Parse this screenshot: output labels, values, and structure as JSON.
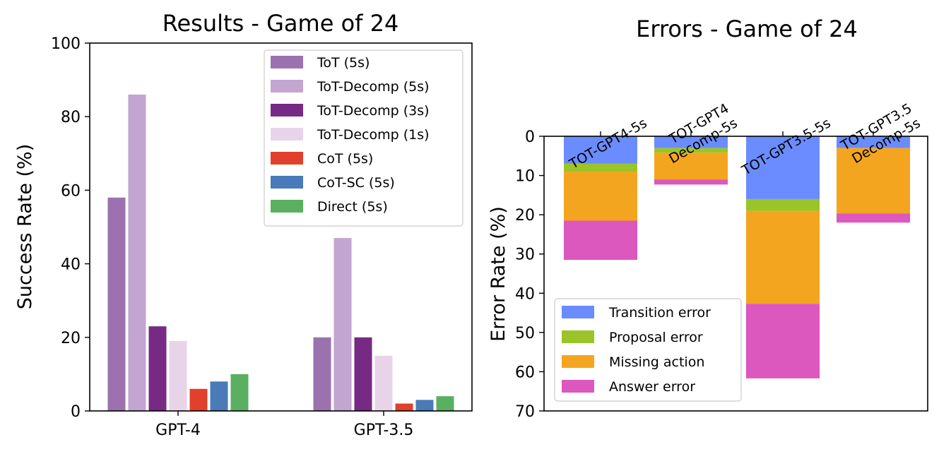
{
  "chart_data": [
    {
      "type": "bar",
      "title": "Results - Game of 24",
      "xlabel": "",
      "ylabel": "Success Rate (%)",
      "ylim": [
        0,
        100
      ],
      "yticks": [
        "0",
        "20",
        "40",
        "60",
        "80",
        "100"
      ],
      "categories": [
        "GPT-4",
        "GPT-3.5"
      ],
      "legend_position": "top-right",
      "series": [
        {
          "name": "ToT (5s)",
          "color": "#9b72ae",
          "values": [
            58,
            20
          ]
        },
        {
          "name": "ToT-Decomp (5s)",
          "color": "#c2a5d0",
          "values": [
            86,
            47
          ]
        },
        {
          "name": "ToT-Decomp (3s)",
          "color": "#772a84",
          "values": [
            23,
            20
          ]
        },
        {
          "name": "ToT-Decomp (1s)",
          "color": "#e8d4e9",
          "values": [
            19,
            15
          ]
        },
        {
          "name": "CoT (5s)",
          "color": "#e0402c",
          "values": [
            6,
            2
          ]
        },
        {
          "name": "CoT-SC (5s)",
          "color": "#4a7ab8",
          "values": [
            8,
            3
          ]
        },
        {
          "name": "Direct (5s)",
          "color": "#5aaf61",
          "values": [
            10,
            4
          ]
        }
      ]
    },
    {
      "type": "stacked-bar",
      "title": "Errors - Game of 24",
      "xlabel": "",
      "ylabel": "Error Rate (%)",
      "ylim": [
        70,
        0
      ],
      "yticks": [
        "0",
        "10",
        "20",
        "30",
        "40",
        "50",
        "60",
        "70"
      ],
      "categories": [
        {
          "line1": "TOT-GPT4-5s",
          "line2": ""
        },
        {
          "line1": "TOT-GPT4",
          "line2": "Decomp-5s"
        },
        {
          "line1": "TOT-GPT3.5-5s",
          "line2": ""
        },
        {
          "line1": "TOT-GPT3.5",
          "line2": "Decomp-5s"
        }
      ],
      "legend_position": "bottom-left",
      "series": [
        {
          "name": "Transition error",
          "color": "#6a8cff",
          "values": [
            7,
            3,
            16,
            3
          ]
        },
        {
          "name": "Proposal error",
          "color": "#9ac427",
          "values": [
            2,
            1.2,
            3,
            0
          ]
        },
        {
          "name": "Missing action",
          "color": "#f4a51f",
          "values": [
            12.5,
            6.8,
            23.7,
            16.7
          ]
        },
        {
          "name": "Answer error",
          "color": "#dc57be",
          "values": [
            10,
            1.3,
            19,
            2.3
          ]
        }
      ]
    }
  ]
}
